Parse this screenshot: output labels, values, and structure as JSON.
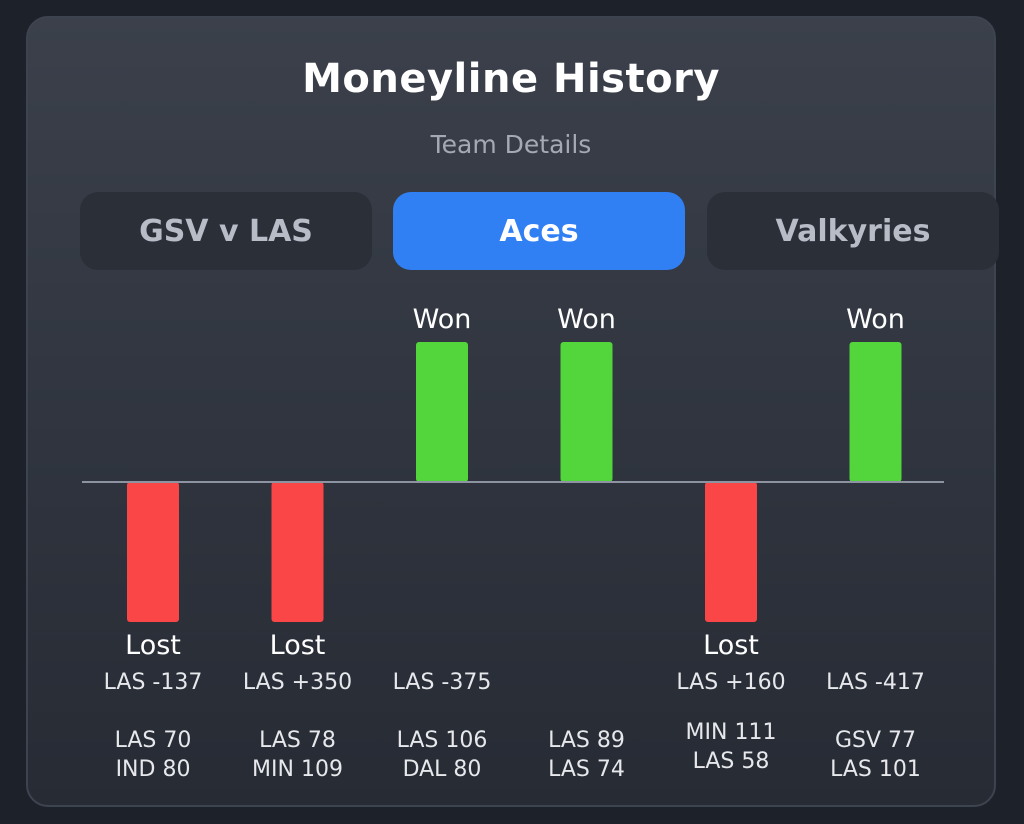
{
  "header": {
    "title": "Moneyline History",
    "subtitle": "Team Details"
  },
  "tabs": [
    {
      "label": "GSV v LAS",
      "active": false
    },
    {
      "label": "Aces",
      "active": true
    },
    {
      "label": "Valkyries",
      "active": false
    }
  ],
  "colors": {
    "won": "#52d63c",
    "lost": "#fa4646",
    "baseline": "#8d93a0"
  },
  "chart_data": {
    "type": "bar",
    "games": [
      {
        "result": "Lost",
        "line": "LAS -137",
        "score": [
          "LAS 70",
          "IND 80"
        ]
      },
      {
        "result": "Lost",
        "line": "LAS +350",
        "score": [
          "LAS 78",
          "MIN 109"
        ]
      },
      {
        "result": "Won",
        "line": "LAS -375",
        "score": [
          "LAS 106",
          "DAL 80"
        ]
      },
      {
        "result": "Won",
        "line": "",
        "score": [
          "LAS 89",
          "LAS 74"
        ]
      },
      {
        "result": "Lost",
        "line": "LAS +160",
        "score": [
          "MIN 111",
          "LAS 58"
        ]
      },
      {
        "result": "Won",
        "line": "LAS -417",
        "score": [
          "GSV 77",
          "LAS 101"
        ]
      }
    ]
  }
}
